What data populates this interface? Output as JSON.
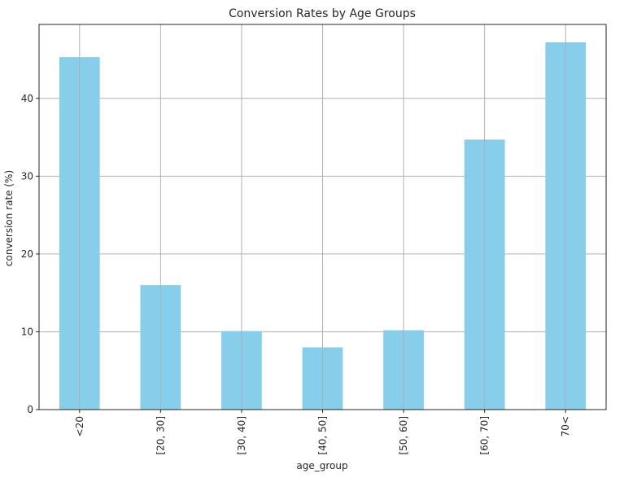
{
  "chart_data": {
    "type": "bar",
    "title": "Conversion Rates by Age Groups",
    "xlabel": "age_group",
    "ylabel": "conversion rate (%)",
    "categories": [
      "<20",
      "[20, 30]",
      "[30, 40]",
      "[40, 50]",
      "[50, 60]",
      "[60, 70]",
      "70<"
    ],
    "values": [
      45.3,
      16.0,
      10.1,
      8.0,
      10.2,
      34.7,
      47.2
    ],
    "ylim": [
      0,
      49.5
    ],
    "yticks": [
      0,
      10,
      20,
      30,
      40
    ],
    "grid": true,
    "bar_color": "#87ceeb",
    "grid_color": "#b0b0b0",
    "axis_color": "#262626"
  }
}
